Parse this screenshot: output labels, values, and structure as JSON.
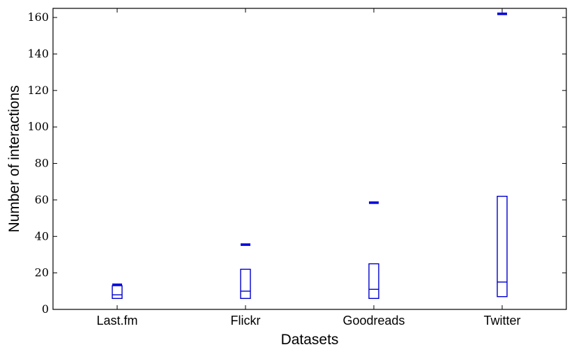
{
  "chart_data": {
    "type": "box",
    "xlabel": "Datasets",
    "ylabel": "Number of interactions",
    "ylim": [
      0,
      165
    ],
    "yticks": [
      0,
      20,
      40,
      60,
      80,
      100,
      120,
      140,
      160
    ],
    "ytick_labels": [
      "0",
      "20",
      "40",
      "60",
      "80",
      "100",
      "120",
      "140",
      "160"
    ],
    "grid": false,
    "categories": [
      "Last.fm",
      "Flickr",
      "Goodreads",
      "Twitter"
    ],
    "boxes": [
      {
        "q1": 6,
        "median": 8,
        "q3": 13,
        "mean": 13.5
      },
      {
        "q1": 6,
        "median": 10,
        "q3": 22,
        "mean": 35.5
      },
      {
        "q1": 6,
        "median": 11,
        "q3": 25,
        "mean": 58.5
      },
      {
        "q1": 7,
        "median": 15,
        "q3": 62,
        "mean": 162
      }
    ],
    "colors": {
      "box": "#0000cc",
      "mean": "#0000dd",
      "axis": "#000000"
    }
  }
}
